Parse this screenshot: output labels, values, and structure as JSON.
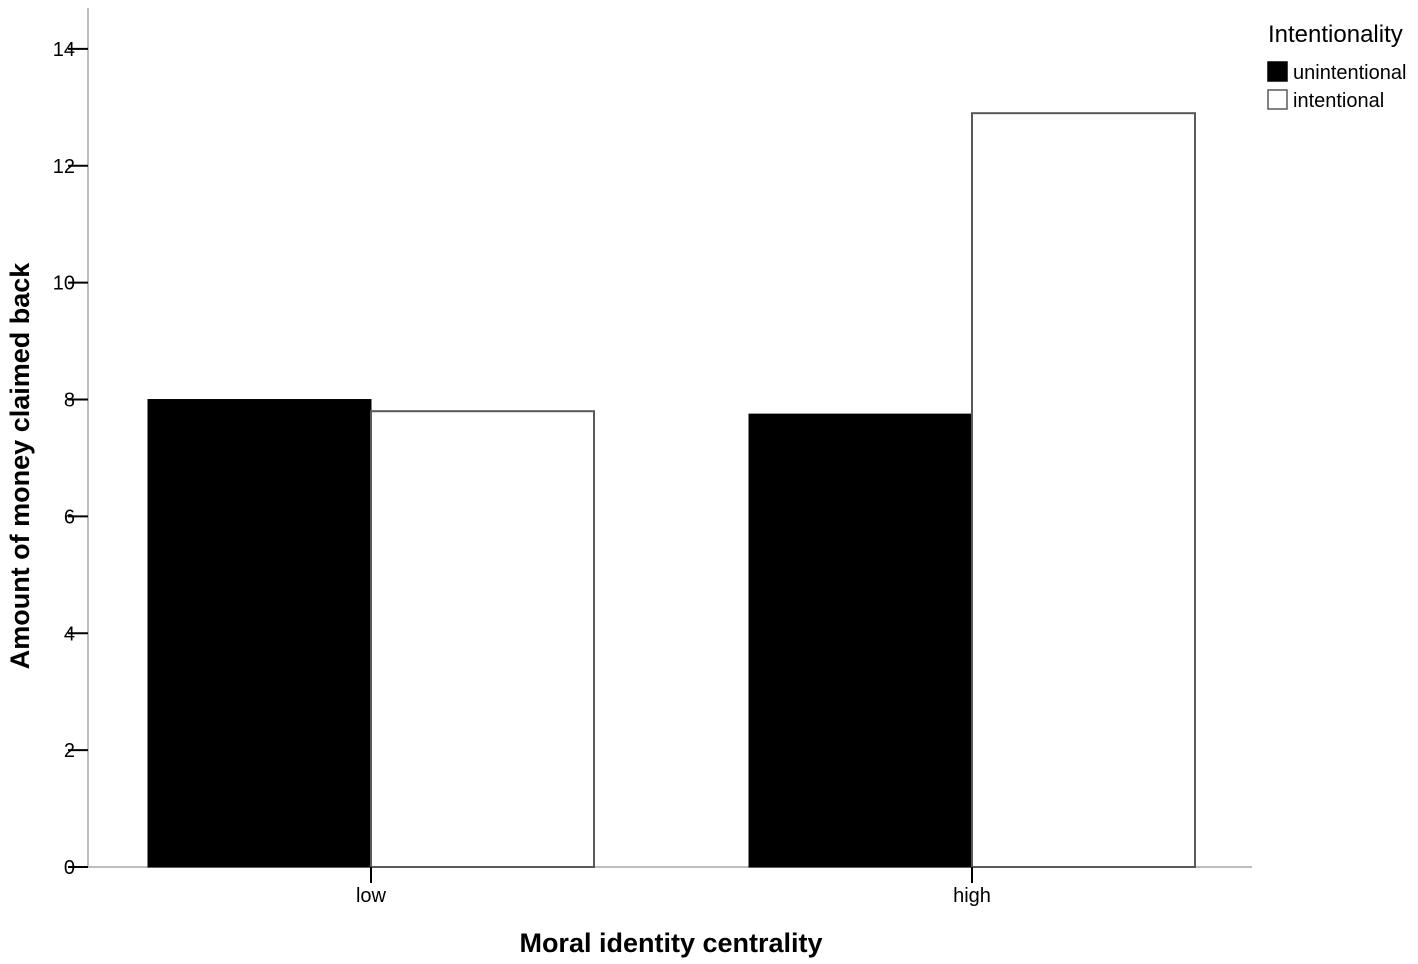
{
  "chart_data": {
    "type": "bar",
    "categories": [
      "low",
      "high"
    ],
    "series": [
      {
        "name": "unintentional",
        "values": [
          8.0,
          7.75
        ],
        "color": "#000000"
      },
      {
        "name": "intentional",
        "values": [
          7.8,
          12.9
        ],
        "color": "#ffffff"
      }
    ],
    "title": "",
    "xlabel": "Moral identity centrality",
    "ylabel": "Amount of money claimed back",
    "ylim": [
      0,
      14.7
    ],
    "yticks": [
      0,
      2,
      4,
      6,
      8,
      10,
      12,
      14
    ],
    "grid": false,
    "legend": {
      "title": "Intentionality",
      "placement": "top-right",
      "entries": [
        "unintentional",
        "intentional"
      ]
    }
  }
}
